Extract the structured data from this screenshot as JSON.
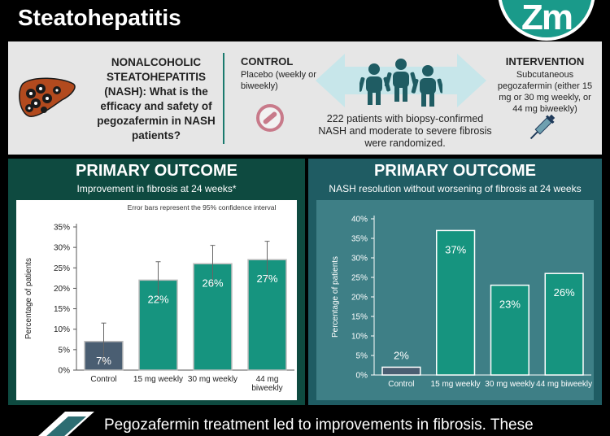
{
  "header": {
    "title_line2": "Steatohepatitis",
    "logo_text": "Zm"
  },
  "question": {
    "text": "NONALCOHOLIC STEATOHEPATITIS (NASH): What is the efficacy and safety of pegozafermin in NASH patients?"
  },
  "control": {
    "title": "CONTROL",
    "description": "Placebo (weekly or biweekly)"
  },
  "trial": {
    "patients_text": "222 patients with biopsy-confirmed NASH and moderate to severe fibrosis were randomized."
  },
  "intervention": {
    "title": "INTERVENTION",
    "description": "Subcutaneous pegozafermin (either 15 mg or 30 mg weekly, or 44 mg biweekly)"
  },
  "panels": {
    "left": {
      "title": "PRIMARY OUTCOME",
      "subtitle": "Improvement in fibrosis at 24 weeks*",
      "note": "Error bars represent the 95% confidence interval"
    },
    "right": {
      "title": "PRIMARY OUTCOME",
      "subtitle": "NASH resolution without worsening of fibrosis at 24 weeks"
    }
  },
  "chart_data": [
    {
      "type": "bar",
      "title": "PRIMARY OUTCOME",
      "subtitle": "Improvement in fibrosis at 24 weeks*",
      "ylabel": "Percentage of patients",
      "categories": [
        "Control",
        "15 mg weekly",
        "30 mg weekly",
        "44 mg biweekly"
      ],
      "values": [
        7,
        22,
        26,
        27
      ],
      "data_labels": [
        "7%",
        "22%",
        "26%",
        "27%"
      ],
      "error_low": [
        2,
        17,
        21,
        22.5
      ],
      "error_high": [
        11.5,
        26.5,
        30.5,
        31.5
      ],
      "ylim": [
        0,
        35
      ],
      "yticks": [
        "0%",
        "5%",
        "10%",
        "15%",
        "20%",
        "25%",
        "30%",
        "35%"
      ],
      "colors": {
        "control": "#4a5e72",
        "treatment": "#16947f",
        "background": "#ffffff"
      }
    },
    {
      "type": "bar",
      "title": "PRIMARY OUTCOME",
      "subtitle": "NASH resolution without worsening of fibrosis at 24 weeks",
      "ylabel": "Percentage of patients",
      "categories": [
        "Control",
        "15 mg weekly",
        "30 mg weekly",
        "44 mg biweekly"
      ],
      "values": [
        2,
        37,
        23,
        26
      ],
      "data_labels": [
        "2%",
        "37%",
        "23%",
        "26%"
      ],
      "ylim": [
        0,
        40
      ],
      "yticks": [
        "0%",
        "5%",
        "10%",
        "15%",
        "20%",
        "25%",
        "30%",
        "35%",
        "40%"
      ],
      "colors": {
        "control": "#4a5e72",
        "treatment": "#16947f",
        "background": "#3e7f86"
      }
    }
  ],
  "footer": {
    "text": "Pegozafermin treatment led to improvements in fibrosis. These"
  },
  "icons": [
    "liver-icon",
    "no-symbol-icon",
    "double-arrow-icon",
    "people-icon",
    "syringe-icon",
    "pill-icon"
  ]
}
